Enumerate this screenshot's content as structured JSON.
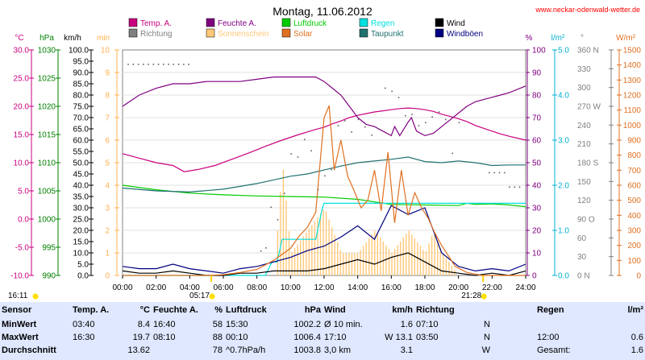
{
  "header": {
    "date": "Montag, 11.06.2012",
    "website": "www.neckar-odenwald-wetter.de"
  },
  "colors": {
    "temp": "#c8007f",
    "humidity": "#800080",
    "pressure": "#00cc00",
    "rain": "#00e0e0",
    "wind": "#000000",
    "direction": "#808080",
    "sunshine": "#ffc878",
    "solar": "#e07020",
    "dewpoint": "#207070",
    "gust": "#000080",
    "stats_bg": "#dfe8ff"
  },
  "chart_data": {
    "type": "line",
    "title": "Montag, 11.06.2012",
    "x_ticks": [
      "00:00",
      "02:00",
      "04:00",
      "06:00",
      "08:00",
      "10:00",
      "12:00",
      "14:00",
      "16:00",
      "18:00",
      "20:00",
      "22:00",
      "24:00"
    ],
    "axes": {
      "temp": {
        "unit": "°C",
        "ticks": [
          "30.0",
          "25.0",
          "20.0",
          "15.0",
          "10.0",
          "5.0",
          "0.0",
          "-5.0",
          "-10.0"
        ],
        "range": [
          -10,
          30
        ]
      },
      "pressure": {
        "unit": "hPa",
        "ticks": [
          "1030",
          "1025",
          "1020",
          "1015",
          "1010",
          "1005",
          "1000",
          "995",
          "990"
        ],
        "range": [
          990,
          1030
        ]
      },
      "wind": {
        "unit": "km/h",
        "ticks": [
          "100.0",
          "95.0",
          "90.0",
          "85.0",
          "80.0",
          "75.0",
          "70.0",
          "65.0",
          "60.0",
          "55.0",
          "50.0",
          "45.0",
          "40.0",
          "35.0",
          "30.0",
          "25.0",
          "20.0",
          "15.0",
          "10.0",
          "5.0",
          "0.0"
        ],
        "range": [
          0,
          100
        ]
      },
      "sunshine": {
        "unit": "min",
        "ticks": [
          "10",
          "9",
          "8",
          "7",
          "6",
          "5",
          "4",
          "3",
          "2",
          "1",
          "0"
        ],
        "range": [
          0,
          10
        ]
      },
      "humidity": {
        "unit": "%",
        "ticks": [
          "100",
          "90",
          "80",
          "70",
          "60",
          "50",
          "40",
          "30",
          "20",
          "10",
          "0"
        ],
        "range": [
          0,
          100
        ]
      },
      "rain": {
        "unit": "l/m²",
        "ticks": [
          "5.0",
          "4.0",
          "3.0",
          "2.0",
          "1.0",
          "0.0"
        ],
        "range": [
          0,
          5
        ]
      },
      "direction": {
        "unit": "°",
        "ticks": [
          "360 N",
          "330",
          "300",
          "270 W",
          "240",
          "210",
          "180 S",
          "150",
          "120",
          "90 O",
          "60",
          "30",
          "0 N"
        ],
        "range": [
          0,
          360
        ]
      },
      "solar": {
        "unit": "W/m²",
        "ticks": [
          "1500",
          "1400",
          "1300",
          "1200",
          "1100",
          "1000",
          "900",
          "800",
          "700",
          "600",
          "500",
          "400",
          "300",
          "200",
          "100",
          "0"
        ],
        "range": [
          0,
          1500
        ]
      }
    },
    "legend": [
      {
        "name": "Temp. A.",
        "key": "temp"
      },
      {
        "name": "Feuchte A.",
        "key": "humidity"
      },
      {
        "name": "Luftdruck",
        "key": "pressure"
      },
      {
        "name": "Regen",
        "key": "rain"
      },
      {
        "name": "Wind",
        "key": "wind"
      },
      {
        "name": "Richtung",
        "key": "direction"
      },
      {
        "name": "Sonnenschein",
        "key": "sunshine"
      },
      {
        "name": "Solar",
        "key": "solar"
      },
      {
        "name": "Taupunkt",
        "key": "dewpoint"
      },
      {
        "name": "Windböen",
        "key": "gust"
      }
    ],
    "series": [
      {
        "name": "Temp. A.",
        "axis": "temp",
        "x": [
          0,
          1,
          2,
          3,
          3.67,
          4.5,
          5.5,
          6.5,
          7.5,
          8.5,
          9.5,
          10.5,
          11.5,
          12,
          12.5,
          13,
          13.5,
          14,
          14.5,
          15,
          15.5,
          16,
          16.5,
          17,
          17.5,
          18,
          18.5,
          19,
          19.5,
          20,
          20.5,
          21,
          21.5,
          22,
          22.5,
          23,
          24
        ],
        "y": [
          11.6,
          10.8,
          10.0,
          9.5,
          8.4,
          8.8,
          9.5,
          10.6,
          11.7,
          12.9,
          14.0,
          15.0,
          15.9,
          16.3,
          16.9,
          17.4,
          18.0,
          18.4,
          18.7,
          19.0,
          19.2,
          19.4,
          19.6,
          19.7,
          19.6,
          19.4,
          19.1,
          18.6,
          18.2,
          17.8,
          17.3,
          16.6,
          16.1,
          15.6,
          15.1,
          14.7,
          14.0
        ]
      },
      {
        "name": "Feuchte A.",
        "axis": "humidity",
        "x": [
          0,
          1,
          2,
          3,
          4,
          5,
          6,
          7,
          8,
          9,
          10,
          11,
          11.5,
          12,
          12.5,
          13,
          13.5,
          14,
          14.5,
          15,
          15.5,
          16,
          16.2,
          16.5,
          17,
          17.2,
          17.5,
          18,
          18.5,
          19,
          19.5,
          20,
          20.5,
          21,
          21.5,
          22,
          22.5,
          23,
          24
        ],
        "y": [
          75,
          80,
          83,
          85,
          85,
          86,
          86,
          86,
          87,
          88,
          88,
          88,
          88,
          86,
          83,
          80,
          75,
          70,
          67,
          66,
          64,
          62,
          66,
          62,
          68,
          70,
          64,
          62,
          63,
          66,
          69,
          72,
          75,
          77,
          78,
          79,
          80,
          81,
          84
        ]
      },
      {
        "name": "Luftdruck",
        "axis": "pressure",
        "x": [
          0,
          2,
          4,
          6,
          8,
          10,
          12,
          14,
          16,
          18,
          20,
          20.5,
          21,
          22,
          23,
          24
        ],
        "y": [
          1006.0,
          1005.2,
          1004.6,
          1004.3,
          1004.1,
          1004.0,
          1003.9,
          1003.5,
          1002.6,
          1002.5,
          1002.4,
          1002.8,
          1002.6,
          1002.7,
          1002.5,
          1002.2
        ]
      },
      {
        "name": "Taupunkt",
        "axis": "temp",
        "x": [
          0,
          2,
          4,
          6,
          8,
          10,
          11,
          12,
          13,
          14,
          15,
          16,
          17,
          18,
          19,
          20,
          21,
          22,
          23,
          24
        ],
        "y": [
          5.5,
          5.0,
          4.8,
          5.3,
          6.3,
          7.6,
          8.0,
          8.7,
          9.4,
          10.0,
          10.3,
          10.6,
          11.0,
          10.2,
          10.0,
          10.3,
          10.0,
          9.5,
          9.6,
          9.6
        ]
      },
      {
        "name": "Regen",
        "axis": "rain",
        "x": [
          0,
          7.5,
          7.9,
          8.5,
          8.9,
          9.2,
          9.5,
          11.5,
          11.9,
          12.0,
          18.0,
          20.0,
          22.0,
          24.0
        ],
        "y": [
          0,
          0,
          0,
          0,
          0.3,
          0.3,
          0.8,
          0.8,
          1.5,
          1.6,
          1.6,
          1.6,
          1.6,
          1.6
        ]
      },
      {
        "name": "Wind",
        "axis": "wind",
        "x": [
          0,
          1,
          2,
          3,
          4,
          5,
          6,
          7,
          8,
          9,
          10,
          11,
          12,
          13,
          14,
          15,
          16,
          17,
          18,
          19,
          20,
          21,
          22,
          23,
          24
        ],
        "y": [
          2,
          1,
          1,
          2,
          1,
          0,
          0,
          1,
          1,
          2,
          2,
          2,
          3,
          5,
          7,
          5,
          8,
          10,
          6,
          2,
          1,
          0,
          1,
          0,
          2
        ]
      },
      {
        "name": "Windböen",
        "axis": "wind",
        "x": [
          0,
          1,
          2,
          3,
          4,
          5,
          6,
          7,
          8,
          9,
          10,
          11,
          12,
          13,
          14,
          15,
          16,
          17,
          18,
          19,
          20,
          21,
          22,
          23,
          24
        ],
        "y": [
          4,
          3,
          3,
          5,
          3,
          2,
          1,
          3,
          4,
          6,
          8,
          11,
          13,
          17,
          22,
          16,
          31,
          27,
          30,
          10,
          4,
          2,
          3,
          2,
          5
        ]
      },
      {
        "name": "Solar",
        "axis": "solar",
        "x": [
          0,
          5.2,
          6,
          7,
          8,
          9,
          10,
          10.5,
          11,
          11.5,
          12,
          12.3,
          12.6,
          13,
          13.4,
          13.8,
          14.2,
          14.6,
          15,
          15.4,
          15.8,
          16.2,
          16.6,
          17,
          17.4,
          17.8,
          18.2,
          18.6,
          19,
          19.4,
          19.8,
          20.5,
          21.4,
          24
        ],
        "y": [
          0,
          0,
          5,
          20,
          40,
          100,
          180,
          260,
          320,
          420,
          1050,
          1130,
          700,
          900,
          660,
          560,
          450,
          500,
          700,
          430,
          820,
          350,
          700,
          400,
          550,
          450,
          380,
          280,
          200,
          130,
          60,
          20,
          0,
          0
        ]
      },
      {
        "name": "Sonnenschein",
        "axis": "sunshine",
        "x": [
          6,
          8,
          9.2,
          9.5,
          10,
          11,
          12,
          13,
          14,
          15,
          16,
          17,
          18,
          18.5,
          19,
          19.5,
          20
        ],
        "y": [
          0,
          0,
          2,
          5,
          1,
          2,
          3,
          1,
          1,
          2,
          1,
          2,
          1,
          2,
          1,
          0.5,
          0
        ]
      }
    ],
    "direction_dots": [
      [
        0.3,
        338
      ],
      [
        0.6,
        338
      ],
      [
        0.9,
        338
      ],
      [
        1.2,
        338
      ],
      [
        1.5,
        338
      ],
      [
        1.8,
        338
      ],
      [
        2.1,
        338
      ],
      [
        2.4,
        338
      ],
      [
        2.7,
        338
      ],
      [
        3,
        338
      ],
      [
        3.3,
        338
      ],
      [
        3.6,
        338
      ],
      [
        3.9,
        338
      ],
      [
        8.2,
        40
      ],
      [
        8.5,
        45
      ],
      [
        8.8,
        110
      ],
      [
        9.2,
        90
      ],
      [
        9.6,
        132
      ],
      [
        10,
        195
      ],
      [
        10.4,
        190
      ],
      [
        10.8,
        218
      ],
      [
        11.2,
        200
      ],
      [
        11.6,
        138
      ],
      [
        12,
        160
      ],
      [
        12.4,
        170
      ],
      [
        12.8,
        240
      ],
      [
        13.2,
        248
      ],
      [
        13.6,
        230
      ],
      [
        14,
        250
      ],
      [
        14.4,
        238
      ],
      [
        14.8,
        225
      ],
      [
        15.2,
        235
      ],
      [
        15.6,
        300
      ],
      [
        16,
        295
      ],
      [
        16.4,
        285
      ],
      [
        16.8,
        256
      ],
      [
        17.2,
        258
      ],
      [
        17.6,
        240
      ],
      [
        18,
        245
      ],
      [
        18.4,
        254
      ],
      [
        18.8,
        262
      ],
      [
        19.2,
        250
      ],
      [
        19.6,
        196
      ],
      [
        20,
        245
      ],
      [
        21.8,
        165
      ],
      [
        22.1,
        165
      ],
      [
        22.4,
        165
      ],
      [
        22.7,
        165
      ],
      [
        23.0,
        142
      ],
      [
        23.3,
        142
      ],
      [
        23.6,
        142
      ]
    ],
    "sunrise": "05:17",
    "sunset": "21:28",
    "left_time": "16:11"
  },
  "stats": {
    "headers": [
      "Sensor",
      "Temp. A.",
      "°C",
      "Feuchte A.",
      "%",
      "Luftdruck",
      "hPa",
      "Wind",
      "km/h",
      "Richtung",
      "",
      "Regen",
      "l/m²"
    ],
    "rows": [
      {
        "label": "MinWert",
        "cells": [
          "03:40",
          "8.4",
          "16:40",
          "58",
          "15:30",
          "1002.2",
          "Ø 10 min.",
          "1.6",
          "07:10",
          "N",
          "",
          ""
        ]
      },
      {
        "label": "MaxWert",
        "cells": [
          "16:30",
          "19.7",
          "08:10",
          "88",
          "00:10",
          "1006.4",
          "17:10",
          "W 13.1",
          "03:50",
          "N",
          "12:00",
          "0.6"
        ]
      },
      {
        "label": "Durchschnitt",
        "cells": [
          "",
          "13.62",
          "",
          "78",
          "^0.7hPa/h",
          "1003.8",
          "3,0 km",
          "3.1",
          "",
          "W",
          "Gesamt:",
          "1.6"
        ]
      }
    ]
  }
}
